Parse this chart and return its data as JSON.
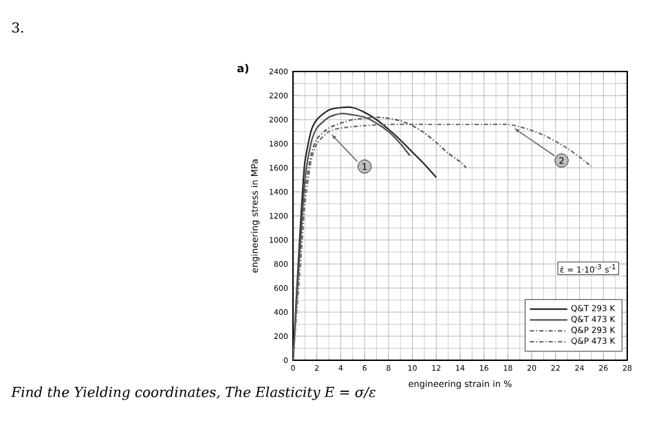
{
  "chart_data": {
    "type": "line",
    "xlabel": "engineering strain in %",
    "ylabel": "engineering stress in MPa",
    "legend_title": "ε̇ = 1·10$^{-3}$ s$^{-1}$",
    "xlim": [
      0,
      28
    ],
    "xticks": [
      0,
      2,
      4,
      6,
      8,
      10,
      12,
      14,
      16,
      18,
      20,
      22,
      24,
      26,
      28
    ],
    "ylim": [
      0,
      2400
    ],
    "yticks": [
      0,
      200,
      400,
      600,
      800,
      1000,
      1200,
      1400,
      1600,
      1800,
      2000,
      2200,
      2400
    ],
    "grid": true,
    "legend": "bottom right",
    "series": [
      {
        "name": "Q&T 293 K",
        "color": "#262626",
        "line_style": "solid",
        "x": [
          0,
          0.5,
          0.8,
          1,
          1.5,
          2,
          3,
          4,
          5,
          6,
          7,
          8,
          9,
          10,
          11,
          12
        ],
        "values": [
          0,
          900,
          1400,
          1650,
          1900,
          2000,
          2080,
          2100,
          2100,
          2060,
          2000,
          1920,
          1830,
          1730,
          1630,
          1520
        ]
      },
      {
        "name": "Q&T 473 K",
        "color": "#505050",
        "line_style": "solid",
        "x": [
          0,
          0.5,
          1,
          1.5,
          2,
          3,
          4,
          5,
          6,
          7,
          8,
          9,
          9.8
        ],
        "values": [
          0,
          800,
          1500,
          1800,
          1930,
          2020,
          2050,
          2040,
          2020,
          1970,
          1900,
          1800,
          1700
        ]
      },
      {
        "name": "Q&P 293 K",
        "color": "#5a5a5a",
        "line_style": "dashed",
        "x": [
          0,
          0.7,
          1,
          1.5,
          2,
          3,
          4,
          5,
          6,
          7,
          8,
          9,
          10,
          11,
          12,
          13,
          14,
          14.5
        ],
        "values": [
          0,
          1000,
          1400,
          1700,
          1840,
          1930,
          1970,
          2000,
          2010,
          2020,
          2010,
          1990,
          1950,
          1890,
          1810,
          1720,
          1650,
          1600
        ]
      },
      {
        "name": "Q&P 473 K",
        "color": "#707070",
        "line_style": "dashed",
        "x": [
          0,
          0.7,
          1,
          1.5,
          2,
          3,
          4,
          6,
          8,
          12,
          16,
          18,
          19,
          20,
          21,
          22,
          23,
          24,
          25
        ],
        "values": [
          0,
          900,
          1300,
          1650,
          1800,
          1900,
          1930,
          1950,
          1960,
          1960,
          1960,
          1960,
          1940,
          1910,
          1870,
          1820,
          1760,
          1690,
          1610
        ]
      }
    ],
    "annotations": [
      "3.",
      "a)",
      {
        "text": "1",
        "x": 3.2,
        "y": 1880
      },
      {
        "text": "2",
        "x": 18.5,
        "y": 1930
      },
      "Find the Yielding coordinates, The Elasticity E = σ/ε"
    ]
  }
}
